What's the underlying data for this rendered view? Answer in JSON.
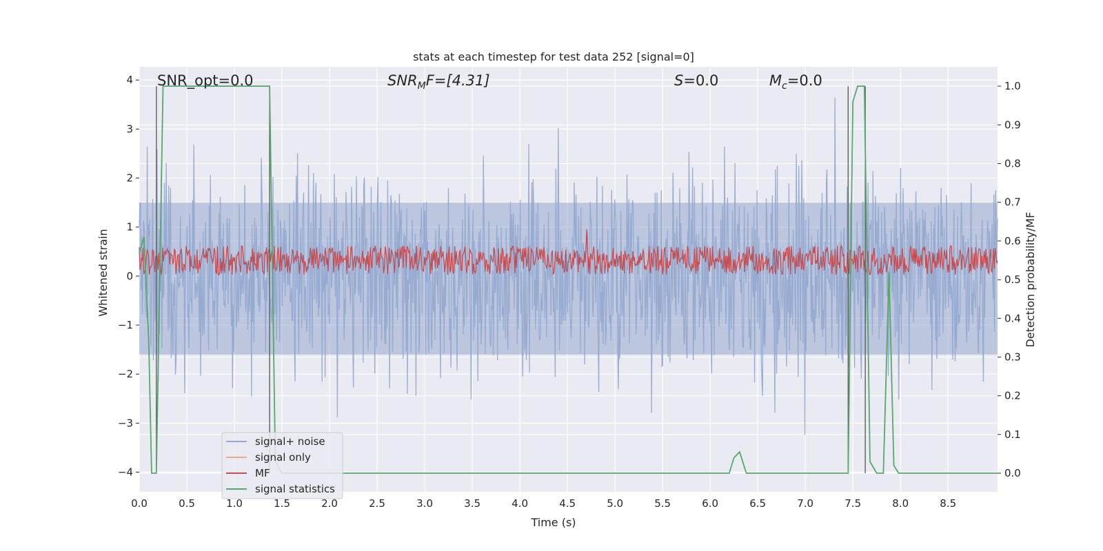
{
  "chart_data": {
    "type": "line",
    "title": "stats at each timestep for test data 252 [signal=0]",
    "xlabel": "Time (s)",
    "ylabel_left": "Whitened strain",
    "ylabel_right": "Detection probability/MF",
    "xlim": [
      0,
      9.02
    ],
    "ylim_left": [
      -4.4,
      4.27
    ],
    "ylim_right": [
      -0.048,
      1.05
    ],
    "x_ticks": [
      "0.0",
      "0.5",
      "1.0",
      "1.5",
      "2.0",
      "2.5",
      "3.0",
      "3.5",
      "4.0",
      "4.5",
      "5.0",
      "5.5",
      "6.0",
      "6.5",
      "7.0",
      "7.5",
      "8.0",
      "8.5"
    ],
    "y_ticks_left": [
      "−4",
      "−3",
      "−2",
      "−1",
      "0",
      "1",
      "2",
      "3",
      "4"
    ],
    "y_ticks_right": [
      "0.0",
      "0.1",
      "0.2",
      "0.3",
      "0.4",
      "0.5",
      "0.6",
      "0.7",
      "0.8",
      "0.9",
      "1.0"
    ],
    "grid": true,
    "legend_position": "lower-left",
    "annotations": {
      "snr_opt": "SNR_opt=0.0",
      "snr_mf_base": "SNR",
      "snr_mf_sub": "M",
      "snr_mf_rest": "F=[4.31]",
      "s_base": "S",
      "s_rest": "=0.0",
      "mc_base": "M",
      "mc_sub": "c",
      "mc_rest": "=0.0"
    },
    "series": [
      {
        "name": "signal+ noise",
        "color": "#95a9cf",
        "description_axis": "left",
        "typical_range": [
          -2.4,
          2.4
        ],
        "extremes": [
          -4.0,
          3.9
        ]
      },
      {
        "name": "signal only",
        "color": "#e8a98c",
        "axis": "left",
        "values_constant": 0
      },
      {
        "name": "MF",
        "color": "#c44e52",
        "axis": "right",
        "typical_range": [
          0.52,
          0.62
        ],
        "peak": {
          "x": 4.7,
          "y": 0.63
        }
      },
      {
        "name": "signal statistics",
        "color": "#55a868",
        "axis": "right",
        "points": [
          [
            0.0,
            0.57
          ],
          [
            0.05,
            0.61
          ],
          [
            0.1,
            0.34
          ],
          [
            0.13,
            0.0
          ],
          [
            0.18,
            0.0
          ],
          [
            0.25,
            1.0
          ],
          [
            1.37,
            1.0
          ],
          [
            1.43,
            0.03
          ],
          [
            1.5,
            0.0
          ],
          [
            6.2,
            0.0
          ],
          [
            6.25,
            0.04
          ],
          [
            6.31,
            0.055
          ],
          [
            6.38,
            0.0
          ],
          [
            7.45,
            0.0
          ],
          [
            7.5,
            0.96
          ],
          [
            7.55,
            1.0
          ],
          [
            7.62,
            1.0
          ],
          [
            7.68,
            0.03
          ],
          [
            7.75,
            0.0
          ],
          [
            7.82,
            0.0
          ],
          [
            7.88,
            0.52
          ],
          [
            7.93,
            0.02
          ],
          [
            7.98,
            0.0
          ],
          [
            9.02,
            0.0
          ]
        ]
      }
    ],
    "markers": [
      {
        "x": 0.18,
        "y_from": 0.0,
        "y_to": 1.0
      },
      {
        "x": 1.37,
        "y_from": 0.0,
        "y_to": 1.0
      },
      {
        "x": 7.45,
        "y_from": 0.0,
        "y_to": 1.0
      },
      {
        "x": 7.63,
        "y_from": 0.0,
        "y_to": 1.0
      }
    ]
  }
}
